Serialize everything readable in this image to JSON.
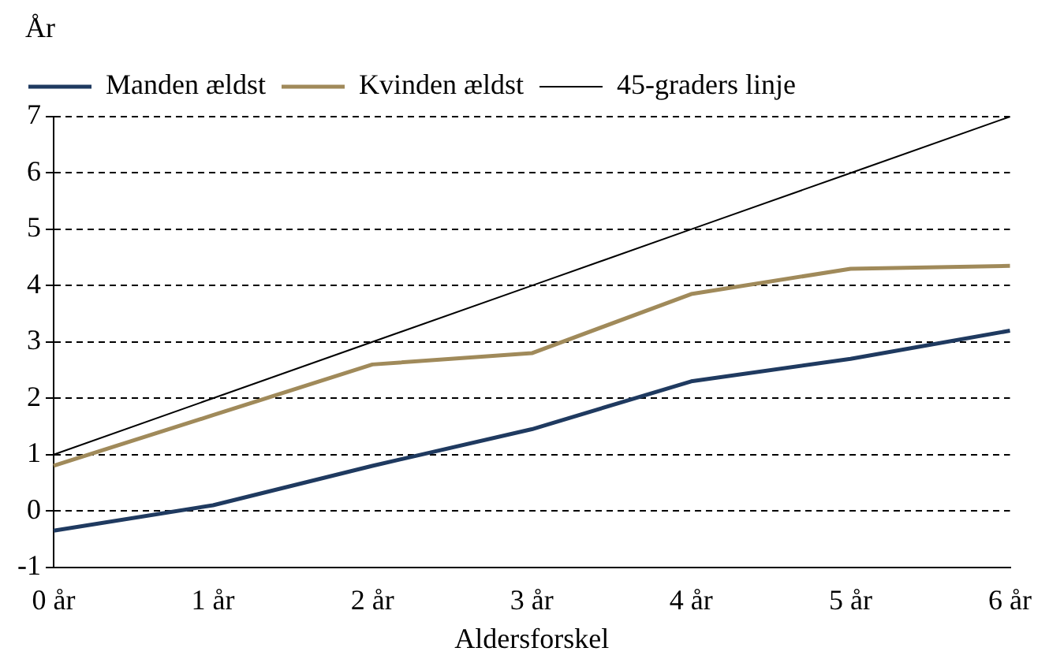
{
  "chart_data": {
    "type": "line",
    "ylabel": "År",
    "xlabel": "Aldersforskel",
    "categories": [
      "0 år",
      "1 år",
      "2 år",
      "3 år",
      "4 år",
      "5 år",
      "6 år"
    ],
    "series": [
      {
        "name": "Manden ældst",
        "color": "#1f3a60",
        "values": [
          -0.35,
          0.1,
          0.8,
          1.45,
          2.3,
          2.7,
          3.2
        ]
      },
      {
        "name": "Kvinden ældst",
        "color": "#a08a5a",
        "values": [
          0.8,
          1.7,
          2.6,
          2.8,
          3.85,
          4.3,
          4.35
        ]
      },
      {
        "name": "45-graders linje",
        "color": "#000000",
        "values": [
          1,
          2,
          3,
          4,
          5,
          6,
          7
        ]
      }
    ],
    "ylim": [
      -1,
      7
    ],
    "yticks": [
      -1,
      0,
      1,
      2,
      3,
      4,
      5,
      6,
      7
    ],
    "grid": "y",
    "legend": "top left",
    "marker": "none",
    "line_style": "solid"
  }
}
